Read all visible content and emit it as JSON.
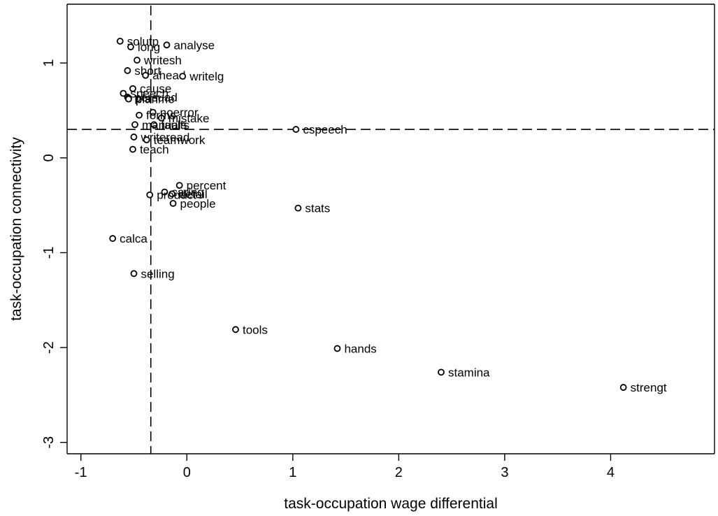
{
  "chart_data": {
    "type": "scatter",
    "xlabel": "task-occupation wage differential",
    "ylabel": "task-occupation connectivity",
    "xlim": [
      -1.13,
      4.98
    ],
    "ylim": [
      -3.12,
      1.62
    ],
    "xticks": [
      -1,
      0,
      1,
      2,
      3,
      4
    ],
    "yticks": [
      -3,
      -2,
      -1,
      0,
      1
    ],
    "reference_lines": {
      "x": -0.34,
      "y": 0.3
    },
    "grid": false,
    "points": [
      {
        "label": "solutp",
        "x": -0.63,
        "y": 1.23
      },
      {
        "label": "long",
        "x": -0.53,
        "y": 1.17
      },
      {
        "label": "analyse",
        "x": -0.19,
        "y": 1.19
      },
      {
        "label": "writesh",
        "x": -0.47,
        "y": 1.03
      },
      {
        "label": "short",
        "x": -0.56,
        "y": 0.92
      },
      {
        "label": "ahead",
        "x": -0.39,
        "y": 0.87
      },
      {
        "label": "writelg",
        "x": -0.04,
        "y": 0.86
      },
      {
        "label": "cause",
        "x": -0.51,
        "y": 0.73
      },
      {
        "label": "speech",
        "x": -0.6,
        "y": 0.68
      },
      {
        "label": "persuad",
        "x": -0.56,
        "y": 0.64
      },
      {
        "label": "plan",
        "x": -0.55,
        "y": 0.63
      },
      {
        "label": "planme",
        "x": -0.55,
        "y": 0.62
      },
      {
        "label": "noerror",
        "x": -0.32,
        "y": 0.48
      },
      {
        "label": "mistake",
        "x": -0.24,
        "y": 0.42
      },
      {
        "label": "forms",
        "x": -0.45,
        "y": 0.45
      },
      {
        "label": "faults",
        "x": -0.31,
        "y": 0.35
      },
      {
        "label": "manuals",
        "x": -0.49,
        "y": 0.35
      },
      {
        "label": "cspeech",
        "x": 1.03,
        "y": 0.3
      },
      {
        "label": "writeread",
        "x": -0.5,
        "y": 0.22
      },
      {
        "label": "teamwork",
        "x": -0.38,
        "y": 0.19
      },
      {
        "label": "teach",
        "x": -0.51,
        "y": 0.09
      },
      {
        "label": "percent",
        "x": -0.07,
        "y": -0.29
      },
      {
        "label": "caring",
        "x": -0.21,
        "y": -0.36
      },
      {
        "label": "detail",
        "x": -0.14,
        "y": -0.38
      },
      {
        "label": "product",
        "x": -0.35,
        "y": -0.39
      },
      {
        "label": "people",
        "x": -0.13,
        "y": -0.48
      },
      {
        "label": "stats",
        "x": 1.05,
        "y": -0.53
      },
      {
        "label": "calca",
        "x": -0.7,
        "y": -0.85
      },
      {
        "label": "selling",
        "x": -0.5,
        "y": -1.22
      },
      {
        "label": "tools",
        "x": 0.46,
        "y": -1.81
      },
      {
        "label": "hands",
        "x": 1.42,
        "y": -2.01
      },
      {
        "label": "stamina",
        "x": 2.4,
        "y": -2.26
      },
      {
        "label": "strengt",
        "x": 4.12,
        "y": -2.42
      }
    ]
  }
}
